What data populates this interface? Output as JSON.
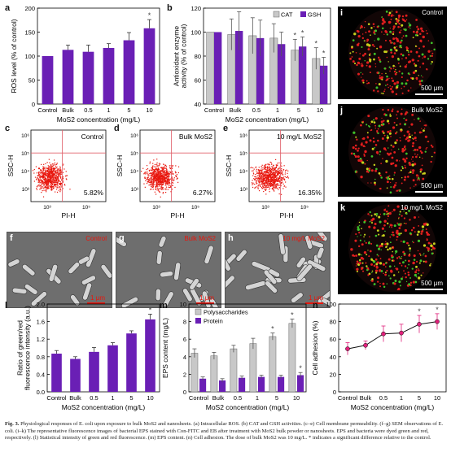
{
  "panels": {
    "a": {
      "letter": "a",
      "ylabel": "ROS level (% of control)",
      "xlabel": "MoS2 concentration (mg/L)",
      "yticks": [
        "0",
        "50",
        "100",
        "150",
        "200"
      ],
      "categories": [
        "Control",
        "Bulk",
        "0.5",
        "1",
        "5",
        "10"
      ]
    },
    "b": {
      "letter": "b",
      "ylabel1": "Antioxidant enzyme",
      "ylabel2": "activity (% of control)",
      "xlabel": "MoS2 concentration (mg/L)",
      "yticks": [
        "40",
        "60",
        "80",
        "100",
        "120"
      ],
      "legend_cat": "CAT",
      "legend_gsh": "GSH",
      "categories": [
        "Control",
        "Bulk",
        "0.5",
        "1",
        "5",
        "10"
      ]
    },
    "c": {
      "letter": "c",
      "title": "Control",
      "pct": "5.82%",
      "ylabel": "SSC-H",
      "xlabel": "PI-H"
    },
    "d": {
      "letter": "d",
      "title": "Bulk MoS2",
      "pct": "6.27%",
      "ylabel": "SSC-H",
      "xlabel": "PI-H"
    },
    "e": {
      "letter": "e",
      "title": "10 mg/L MoS2",
      "pct": "16.35%",
      "ylabel": "SSC-H",
      "xlabel": "PI-H"
    },
    "flow_y_ticks": [
      "10⁶",
      "10⁵",
      "10⁴",
      "10³"
    ],
    "flow_x_ticks": [
      "10³",
      "10⁵"
    ],
    "f": {
      "letter": "f",
      "title": "Control",
      "scale": "1 μm"
    },
    "g": {
      "letter": "g",
      "title": "Bulk MoS2",
      "scale": "1 μm"
    },
    "h": {
      "letter": "h",
      "title": "10 mg/L MoS2",
      "scale": "1 μm"
    },
    "i": {
      "letter": "i",
      "title": "Control",
      "scale": "500 μm"
    },
    "j": {
      "letter": "j",
      "title": "Bulk MoS2",
      "scale": "500 μm"
    },
    "k": {
      "letter": "k",
      "title": "10 mg/L MoS2",
      "scale": "500 μm"
    },
    "l": {
      "letter": "l",
      "ylabel1": "Ratio of green/red",
      "ylabel2": "fluorescence intensity (a.u.)",
      "xlabel": "MoS2 concentration (mg/L)",
      "yticks": [
        "0.0",
        "0.4",
        "0.8",
        "1.2",
        "1.6",
        "2.0"
      ],
      "categories": [
        "Control",
        "Bulk",
        "0.5",
        "1",
        "5",
        "10"
      ]
    },
    "m": {
      "letter": "m",
      "ylabel": "EPS content (mg/L)",
      "xlabel": "MoS2 concentration (mg/L)",
      "yticks": [
        "0",
        "2",
        "4",
        "6",
        "8",
        "10"
      ],
      "legend_poly": "Polysaccharides",
      "legend_prot": "Protein",
      "categories": [
        "Control",
        "Bulk",
        "0.5",
        "1",
        "5",
        "10"
      ]
    },
    "n": {
      "letter": "n",
      "ylabel": "Cell adhesion (%)",
      "xlabel": "MoS2 concentration (mg/L)",
      "yticks": [
        "0",
        "20",
        "40",
        "60",
        "80",
        "100"
      ],
      "categories": [
        "Control",
        "Bulk",
        "0.5",
        "1",
        "5",
        "10"
      ]
    }
  },
  "colors": {
    "purple": "#6a1fb5",
    "grey": "#c8c8c8",
    "pink": "#e0207a",
    "red_scatter": "#e8160d",
    "flow_line": "#e0606a"
  },
  "chart_data": [
    {
      "type": "bar",
      "id": "a",
      "title": "",
      "ylabel": "ROS level (% of control)",
      "xlabel": "MoS2 concentration (mg/L)",
      "categories": [
        "Control",
        "Bulk",
        "0.5",
        "1",
        "5",
        "10"
      ],
      "ylim": [
        0,
        200
      ],
      "series": [
        {
          "values": [
            100,
            113,
            109,
            117,
            133,
            158
          ],
          "errors": [
            0,
            10,
            14,
            9,
            16,
            18
          ]
        }
      ],
      "significant": [
        false,
        false,
        false,
        false,
        false,
        true
      ]
    },
    {
      "type": "bar",
      "id": "b",
      "ylabel": "Antioxidant enzyme activity (% of control)",
      "xlabel": "MoS2 concentration (mg/L)",
      "categories": [
        "Control",
        "Bulk",
        "0.5",
        "1",
        "5",
        "10"
      ],
      "ylim": [
        40,
        120
      ],
      "series": [
        {
          "name": "CAT",
          "values": [
            100,
            98,
            97,
            95,
            85,
            78
          ],
          "errors": [
            0,
            13,
            15,
            12,
            9,
            9
          ],
          "significant": [
            false,
            false,
            false,
            false,
            true,
            true
          ]
        },
        {
          "name": "GSH",
          "values": [
            100,
            101,
            95,
            90,
            88,
            72
          ],
          "errors": [
            0,
            16,
            15,
            10,
            8,
            7
          ],
          "significant": [
            false,
            false,
            false,
            false,
            true,
            true
          ]
        }
      ]
    },
    {
      "type": "bar",
      "id": "l",
      "ylabel": "Ratio of green/red fluorescence intensity (a.u.)",
      "xlabel": "MoS2 concentration (mg/L)",
      "categories": [
        "Control",
        "Bulk",
        "0.5",
        "1",
        "5",
        "10"
      ],
      "ylim": [
        0,
        2.0
      ],
      "series": [
        {
          "values": [
            0.87,
            0.75,
            0.91,
            1.06,
            1.33,
            1.65
          ],
          "errors": [
            0.07,
            0.05,
            0.1,
            0.06,
            0.06,
            0.12
          ]
        }
      ],
      "significant": [
        false,
        false,
        false,
        false,
        false,
        true
      ]
    },
    {
      "type": "bar",
      "id": "m",
      "ylabel": "EPS content (mg/L)",
      "xlabel": "MoS2 concentration (mg/L)",
      "categories": [
        "Control",
        "Bulk",
        "0.5",
        "1",
        "5",
        "10"
      ],
      "ylim": [
        0,
        10
      ],
      "series": [
        {
          "name": "Polysaccharides",
          "values": [
            4.4,
            4.1,
            4.9,
            5.5,
            6.3,
            7.8
          ],
          "errors": [
            0.5,
            0.4,
            0.4,
            0.6,
            0.4,
            0.5
          ],
          "significant": [
            false,
            false,
            false,
            false,
            true,
            true
          ]
        },
        {
          "name": "Protein",
          "values": [
            1.5,
            1.3,
            1.6,
            1.7,
            1.7,
            1.9
          ],
          "errors": [
            0.2,
            0.2,
            0.2,
            0.2,
            0.2,
            0.3
          ],
          "significant": [
            false,
            false,
            false,
            false,
            false,
            true
          ]
        }
      ]
    },
    {
      "type": "line",
      "id": "n",
      "ylabel": "Cell adhesion (%)",
      "xlabel": "MoS2 concentration (mg/L)",
      "categories": [
        "Control",
        "Bulk",
        "0.5",
        "1",
        "5",
        "10"
      ],
      "ylim": [
        0,
        100
      ],
      "series": [
        {
          "values": [
            49,
            53,
            66,
            67,
            77,
            80
          ],
          "errors": [
            7,
            5,
            9,
            10,
            10,
            9
          ]
        }
      ],
      "significant": [
        false,
        false,
        false,
        false,
        true,
        true
      ]
    }
  ],
  "caption": {
    "label": "Fig. 3.",
    "text": "Physiological responses of E. coli upon exposure to bulk MoS2 and nanosheets. (a) Intracellular ROS. (b) CAT and GSH activities. (c–e) Cell membrane permeability. (f–g) SEM observations of E. coli. (i–k) The representative fluorescence images of bacterial EPS stained with Con-FITC and EB after treatment with MoS2 bulk powder or nanosheets. EPS and bacteria were dyed green and red, respectively. (l) Statistical intensity of green and red fluorescence. (m) EPS content. (n) Cell adhesion. The dose of bulk MoS2 was 10 mg/L. * indicates a significant difference relative to the control."
  }
}
